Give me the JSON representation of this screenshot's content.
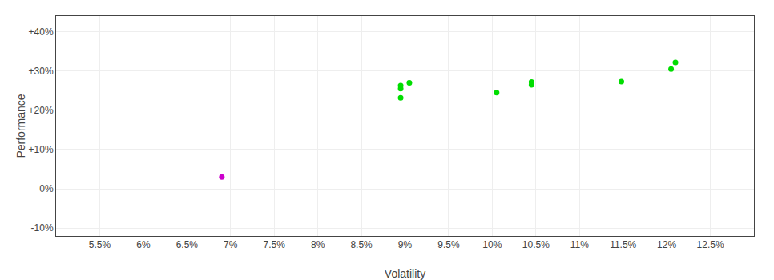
{
  "chart_data": {
    "type": "scatter",
    "xlabel": "Volatility",
    "ylabel": "Performance",
    "grid": true,
    "marker": "circle",
    "xlim": [
      0.05,
      0.13
    ],
    "ylim": [
      -0.12,
      0.44
    ],
    "xticks": [
      {
        "value": 0.055,
        "label": "5.5%"
      },
      {
        "value": 0.06,
        "label": "6%"
      },
      {
        "value": 0.065,
        "label": "6.5%"
      },
      {
        "value": 0.07,
        "label": "7%"
      },
      {
        "value": 0.075,
        "label": "7.5%"
      },
      {
        "value": 0.08,
        "label": "8%"
      },
      {
        "value": 0.085,
        "label": "8.5%"
      },
      {
        "value": 0.09,
        "label": "9%"
      },
      {
        "value": 0.095,
        "label": "9.5%"
      },
      {
        "value": 0.1,
        "label": "10%"
      },
      {
        "value": 0.105,
        "label": "10.5%"
      },
      {
        "value": 0.11,
        "label": "11%"
      },
      {
        "value": 0.115,
        "label": "11.5%"
      },
      {
        "value": 0.12,
        "label": "12%"
      },
      {
        "value": 0.125,
        "label": "12.5%"
      }
    ],
    "yticks": [
      {
        "value": -0.1,
        "label": "-10%"
      },
      {
        "value": 0.0,
        "label": "0%"
      },
      {
        "value": 0.1,
        "label": "+10%"
      },
      {
        "value": 0.2,
        "label": "+20%"
      },
      {
        "value": 0.3,
        "label": "+30%"
      },
      {
        "value": 0.4,
        "label": "+40%"
      }
    ],
    "series": [
      {
        "color": "#00dd00",
        "x": [
          0.0895,
          0.0905,
          0.0895,
          0.0895,
          0.1005,
          0.1045,
          0.1045,
          0.1148,
          0.1205,
          0.121
        ],
        "values": [
          0.263,
          0.27,
          0.255,
          0.232,
          0.245,
          0.265,
          0.272,
          0.273,
          0.305,
          0.322
        ]
      },
      {
        "color": "#cc00cc",
        "x": [
          0.069
        ],
        "values": [
          0.03
        ]
      }
    ]
  }
}
